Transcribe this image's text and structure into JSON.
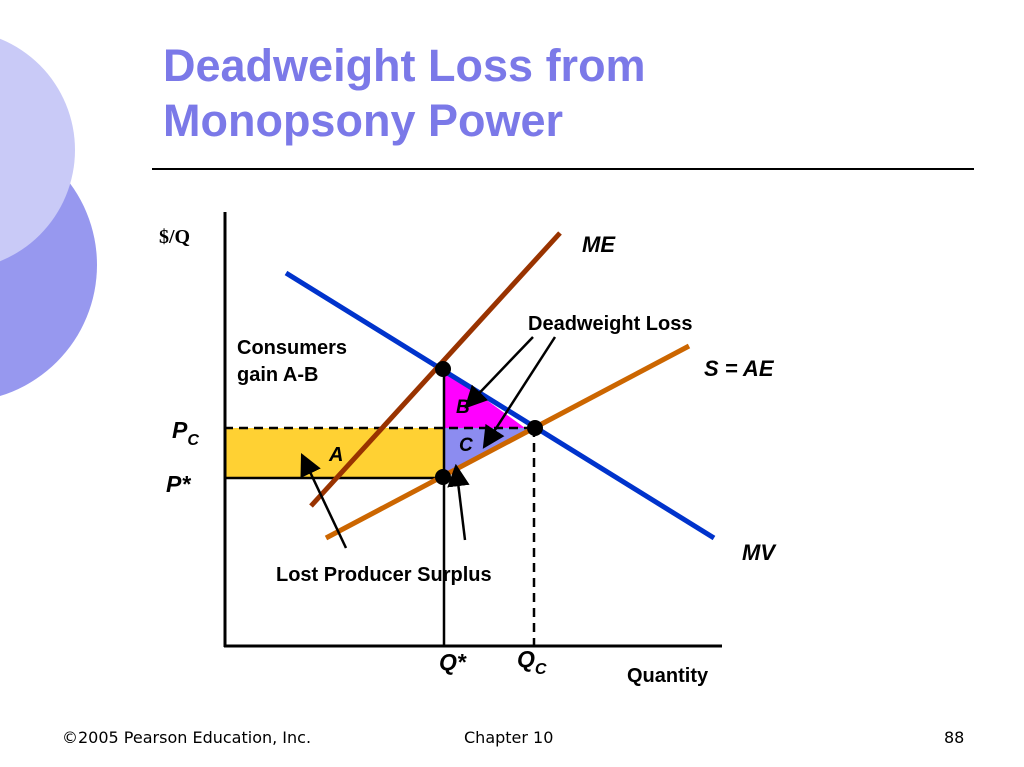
{
  "slide": {
    "title_line1": "Deadweight Loss from",
    "title_line2": "Monopsony Power",
    "footer_left": "©2005 Pearson Education, Inc.",
    "footer_center": "Chapter 10",
    "footer_right": "88"
  },
  "diagram": {
    "y_axis_label": "$/Q",
    "x_axis_label": "Quantity",
    "price_labels": {
      "pc_main": "P",
      "pc_sub": "C",
      "pstar": "P*"
    },
    "quantity_labels": {
      "qstar": "Q*",
      "qc_main": "Q",
      "qc_sub": "C"
    },
    "curves": {
      "me": "ME",
      "supply": "S = AE",
      "mv": "MV"
    },
    "areas": {
      "a": "A",
      "b": "B",
      "c": "C"
    },
    "annotations": {
      "deadweight_loss": "Deadweight Loss",
      "consumers_line1": "Consumers",
      "consumers_line2": "gain A-B",
      "lost_producer_surplus": "Lost Producer Surplus"
    },
    "colors": {
      "title": "#7b79e8",
      "me_curve": "#993300",
      "supply_curve": "#cc6600",
      "mv_curve": "#0033cc",
      "area_a": "#ffd133",
      "area_b": "#ff00ff",
      "area_c": "#8c8cf0",
      "decor_light": "#c9caf7",
      "decor_dark": "#9798ef"
    }
  }
}
